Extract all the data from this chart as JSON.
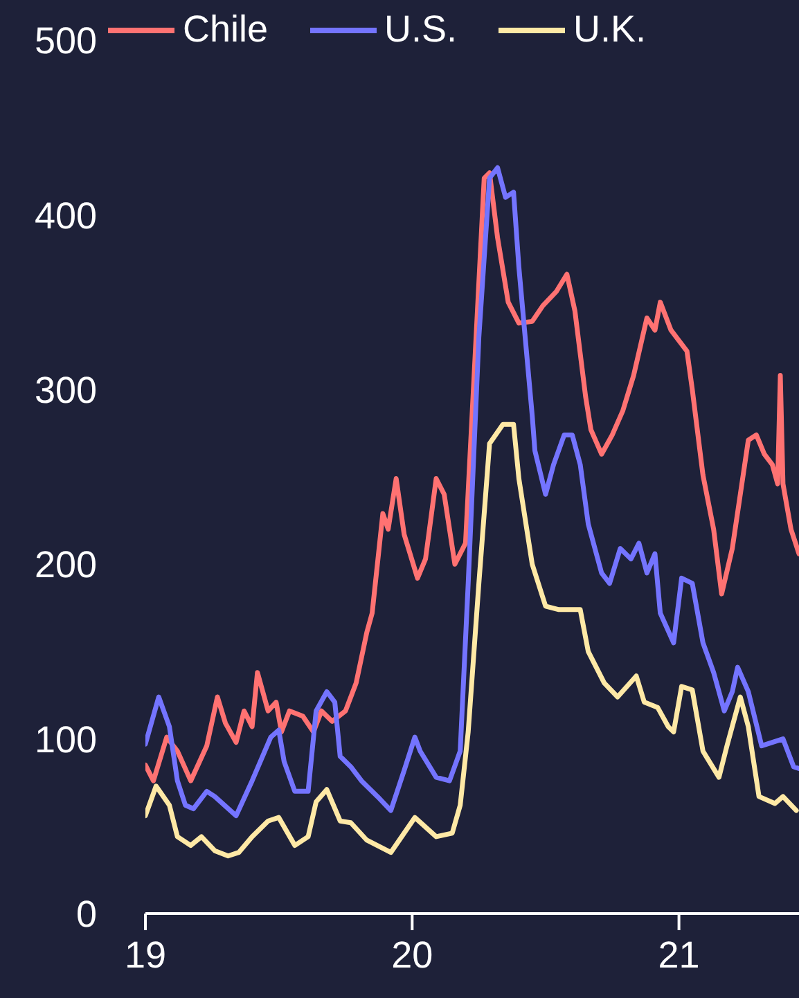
{
  "chart_data": {
    "type": "line",
    "xlim": [
      19,
      21.45
    ],
    "xticks": [
      19,
      20,
      21
    ],
    "ylim": [
      0,
      500
    ],
    "yticks": [
      0,
      100,
      200,
      300,
      400,
      500
    ],
    "grid": false,
    "legend": "top",
    "line_style": "solid",
    "series": [
      {
        "name": "Chile",
        "color": "#ff7272",
        "x": [
          19.0,
          19.03,
          19.08,
          19.12,
          19.17,
          19.23,
          19.27,
          19.3,
          19.34,
          19.37,
          19.4,
          19.42,
          19.46,
          19.49,
          19.51,
          19.54,
          19.59,
          19.63,
          19.66,
          19.7,
          19.75,
          19.79,
          19.83,
          19.85,
          19.89,
          19.91,
          19.94,
          19.97,
          20.02,
          20.05,
          20.09,
          20.12,
          20.16,
          20.2,
          20.27,
          20.29,
          20.32,
          20.36,
          20.4,
          20.45,
          20.49,
          20.54,
          20.58,
          20.61,
          20.65,
          20.67,
          20.71,
          20.75,
          20.79,
          20.83,
          20.88,
          20.91,
          20.93,
          20.97,
          20.99,
          21.03,
          21.05,
          21.09,
          21.13,
          21.16,
          21.2,
          21.23,
          21.26,
          21.29,
          21.32,
          21.35,
          21.37,
          21.38,
          21.39,
          21.42,
          21.45
        ],
        "values": [
          85,
          76,
          101,
          93,
          76,
          96,
          124,
          109,
          98,
          116,
          107,
          138,
          116,
          121,
          104,
          116,
          113,
          104,
          116,
          110,
          116,
          132,
          161,
          172,
          229,
          220,
          249,
          217,
          192,
          203,
          249,
          240,
          200,
          212,
          421,
          424,
          387,
          350,
          338,
          339,
          348,
          356,
          366,
          345,
          296,
          277,
          263,
          274,
          288,
          308,
          341,
          334,
          350,
          334,
          330,
          322,
          300,
          251,
          220,
          183,
          209,
          240,
          271,
          274,
          263,
          257,
          246,
          308,
          246,
          220,
          206
        ]
      },
      {
        "name": "U.S.",
        "color": "#7474ff",
        "x": [
          19.0,
          19.05,
          19.09,
          19.12,
          19.15,
          19.18,
          19.23,
          19.26,
          19.34,
          19.4,
          19.47,
          19.5,
          19.52,
          19.56,
          19.61,
          19.64,
          19.68,
          19.71,
          19.73,
          19.77,
          19.81,
          19.87,
          19.92,
          19.97,
          20.01,
          20.03,
          20.09,
          20.14,
          20.18,
          20.21,
          20.25,
          20.29,
          20.32,
          20.35,
          20.38,
          20.4,
          20.45,
          20.46,
          20.5,
          20.53,
          20.57,
          20.6,
          20.63,
          20.66,
          20.71,
          20.74,
          20.78,
          20.82,
          20.85,
          20.88,
          20.91,
          20.93,
          20.98,
          21.01,
          21.05,
          21.09,
          21.13,
          21.17,
          21.2,
          21.22,
          21.26,
          21.31,
          21.35,
          21.39,
          21.43,
          21.45
        ],
        "values": [
          97,
          124,
          107,
          76,
          62,
          60,
          70,
          67,
          56,
          76,
          101,
          105,
          87,
          70,
          70,
          116,
          127,
          121,
          90,
          84,
          76,
          67,
          59,
          82,
          101,
          93,
          78,
          76,
          93,
          189,
          330,
          421,
          427,
          410,
          413,
          370,
          285,
          265,
          240,
          257,
          274,
          274,
          257,
          223,
          195,
          189,
          209,
          203,
          212,
          195,
          206,
          172,
          155,
          192,
          189,
          155,
          138,
          116,
          127,
          141,
          127,
          96,
          98,
          100,
          84,
          83
        ]
      },
      {
        "name": "U.K.",
        "color": "#ffe9a6",
        "x": [
          19.0,
          19.04,
          19.09,
          19.12,
          19.17,
          19.21,
          19.26,
          19.31,
          19.35,
          19.4,
          19.46,
          19.5,
          19.56,
          19.61,
          19.64,
          19.68,
          19.73,
          19.77,
          19.83,
          19.92,
          20.01,
          20.09,
          20.15,
          20.18,
          20.21,
          20.25,
          20.29,
          20.34,
          20.38,
          20.4,
          20.45,
          20.5,
          20.55,
          20.63,
          20.66,
          20.72,
          20.77,
          20.84,
          20.87,
          20.92,
          20.96,
          20.98,
          21.01,
          21.05,
          21.09,
          21.15,
          21.18,
          21.23,
          21.26,
          21.3,
          21.36,
          21.39,
          21.44
        ],
        "values": [
          56,
          73,
          62,
          44,
          39,
          44,
          36,
          33,
          35,
          44,
          53,
          55,
          39,
          44,
          64,
          71,
          53,
          52,
          42,
          35,
          55,
          44,
          46,
          62,
          104,
          189,
          269,
          280,
          280,
          249,
          200,
          176,
          174,
          174,
          150,
          132,
          124,
          136,
          121,
          118,
          107,
          104,
          130,
          128,
          93,
          78,
          96,
          124,
          107,
          67,
          63,
          67,
          59
        ]
      }
    ]
  }
}
